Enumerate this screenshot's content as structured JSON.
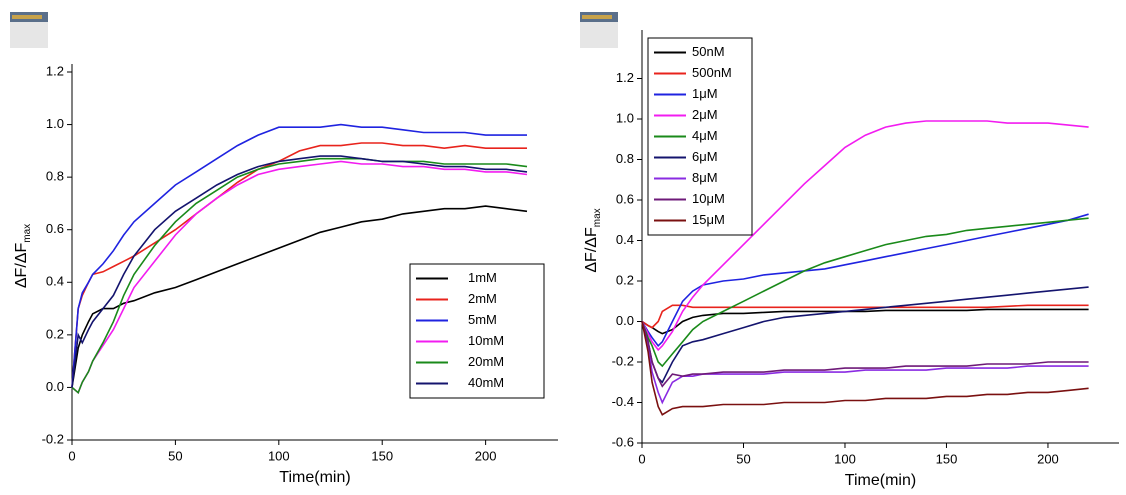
{
  "chart_data": [
    {
      "type": "line",
      "ylabel": "ΔF/ΔF",
      "ylabel_sub": "max",
      "xlabel": "Time(min)",
      "xlim": [
        0,
        235
      ],
      "ylim": [
        -0.2,
        1.2
      ],
      "xticks": [
        0,
        50,
        100,
        150,
        200
      ],
      "yticks": [
        -0.2,
        {
          "value": 0,
          "label": "0.0"
        },
        0.2,
        0.4,
        0.6,
        0.8,
        {
          "value": 1,
          "label": "1.0"
        },
        1.2
      ],
      "legend": "lower right",
      "x": [
        0,
        3,
        5,
        8,
        10,
        15,
        20,
        25,
        30,
        40,
        50,
        60,
        70,
        80,
        90,
        100,
        110,
        120,
        130,
        140,
        150,
        160,
        170,
        180,
        190,
        200,
        210,
        220
      ],
      "series": [
        {
          "name": "1mM",
          "color": "#000000",
          "values": [
            0,
            0.15,
            0.2,
            0.25,
            0.28,
            0.3,
            0.3,
            0.32,
            0.33,
            0.36,
            0.38,
            0.41,
            0.44,
            0.47,
            0.5,
            0.53,
            0.56,
            0.59,
            0.61,
            0.63,
            0.64,
            0.66,
            0.67,
            0.68,
            0.68,
            0.69,
            0.68,
            0.67
          ]
        },
        {
          "name": "2mM",
          "color": "#e8231c",
          "values": [
            0,
            0.3,
            0.35,
            0.4,
            0.43,
            0.44,
            0.46,
            0.48,
            0.5,
            0.55,
            0.6,
            0.66,
            0.72,
            0.78,
            0.83,
            0.86,
            0.9,
            0.92,
            0.92,
            0.93,
            0.93,
            0.92,
            0.92,
            0.91,
            0.92,
            0.91,
            0.91,
            0.91
          ]
        },
        {
          "name": "5mM",
          "color": "#1f23e0",
          "values": [
            0,
            0.3,
            0.36,
            0.4,
            0.43,
            0.47,
            0.52,
            0.58,
            0.63,
            0.7,
            0.77,
            0.82,
            0.87,
            0.92,
            0.96,
            0.99,
            0.99,
            0.99,
            1.0,
            0.99,
            0.99,
            0.98,
            0.97,
            0.97,
            0.97,
            0.96,
            0.96,
            0.96
          ]
        },
        {
          "name": "10mM",
          "color": "#f21cf0",
          "values": [
            0,
            -0.02,
            0.02,
            0.06,
            0.1,
            0.16,
            0.22,
            0.3,
            0.38,
            0.48,
            0.58,
            0.66,
            0.72,
            0.77,
            0.81,
            0.83,
            0.84,
            0.85,
            0.86,
            0.85,
            0.85,
            0.84,
            0.84,
            0.83,
            0.83,
            0.82,
            0.82,
            0.81
          ]
        },
        {
          "name": "20mM",
          "color": "#1a8a1a",
          "values": [
            0,
            -0.02,
            0.02,
            0.06,
            0.1,
            0.17,
            0.25,
            0.35,
            0.43,
            0.54,
            0.63,
            0.7,
            0.75,
            0.8,
            0.83,
            0.85,
            0.86,
            0.87,
            0.87,
            0.87,
            0.86,
            0.86,
            0.86,
            0.85,
            0.85,
            0.85,
            0.85,
            0.84
          ]
        },
        {
          "name": "40mM",
          "color": "#14146e",
          "values": [
            0,
            0.2,
            0.17,
            0.22,
            0.25,
            0.3,
            0.35,
            0.43,
            0.5,
            0.6,
            0.67,
            0.72,
            0.77,
            0.81,
            0.84,
            0.86,
            0.87,
            0.88,
            0.88,
            0.87,
            0.86,
            0.86,
            0.85,
            0.84,
            0.84,
            0.83,
            0.83,
            0.82
          ]
        }
      ]
    },
    {
      "type": "line",
      "ylabel": "ΔF/ΔF",
      "ylabel_sub": "max",
      "xlabel": "Time(min)",
      "xlim": [
        0,
        235
      ],
      "ylim": [
        -0.6,
        1.4
      ],
      "xticks": [
        0,
        50,
        100,
        150,
        200
      ],
      "yticks": [
        -0.6,
        -0.4,
        -0.2,
        {
          "value": 0,
          "label": "0.0"
        },
        0.2,
        0.4,
        0.6,
        0.8,
        {
          "value": 1,
          "label": "1.0"
        },
        1.2
      ],
      "legend": "upper left",
      "x": [
        0,
        3,
        5,
        8,
        10,
        15,
        20,
        25,
        30,
        40,
        50,
        60,
        70,
        80,
        90,
        100,
        110,
        120,
        130,
        140,
        150,
        160,
        170,
        180,
        190,
        200,
        210,
        220
      ],
      "series": [
        {
          "name": "50nM",
          "color": "#000000",
          "values": [
            0,
            -0.02,
            -0.03,
            -0.05,
            -0.06,
            -0.04,
            0,
            0.02,
            0.03,
            0.04,
            0.04,
            0.045,
            0.05,
            0.05,
            0.05,
            0.05,
            0.05,
            0.055,
            0.055,
            0.055,
            0.055,
            0.055,
            0.06,
            0.06,
            0.06,
            0.06,
            0.06,
            0.06
          ]
        },
        {
          "name": "500nM",
          "color": "#e8231c",
          "values": [
            0,
            -0.02,
            -0.03,
            0,
            0.05,
            0.08,
            0.08,
            0.07,
            0.07,
            0.07,
            0.07,
            0.07,
            0.07,
            0.07,
            0.07,
            0.07,
            0.07,
            0.07,
            0.07,
            0.07,
            0.07,
            0.07,
            0.07,
            0.075,
            0.08,
            0.08,
            0.08,
            0.08
          ]
        },
        {
          "name": "1μM",
          "color": "#1f23e0",
          "values": [
            0,
            -0.05,
            -0.08,
            -0.12,
            -0.1,
            0,
            0.1,
            0.15,
            0.18,
            0.2,
            0.21,
            0.23,
            0.24,
            0.25,
            0.26,
            0.28,
            0.3,
            0.32,
            0.34,
            0.36,
            0.38,
            0.4,
            0.42,
            0.44,
            0.46,
            0.48,
            0.5,
            0.53
          ]
        },
        {
          "name": "2μM",
          "color": "#f21cf0",
          "values": [
            0,
            -0.06,
            -0.1,
            -0.14,
            -0.12,
            -0.05,
            0.05,
            0.12,
            0.18,
            0.28,
            0.38,
            0.48,
            0.58,
            0.68,
            0.77,
            0.86,
            0.92,
            0.96,
            0.98,
            0.99,
            0.99,
            0.99,
            0.99,
            0.98,
            0.98,
            0.98,
            0.97,
            0.96
          ]
        },
        {
          "name": "4μM",
          "color": "#1a8a1a",
          "values": [
            0,
            -0.08,
            -0.12,
            -0.2,
            -0.22,
            -0.16,
            -0.1,
            -0.04,
            0,
            0.05,
            0.1,
            0.15,
            0.2,
            0.25,
            0.29,
            0.32,
            0.35,
            0.38,
            0.4,
            0.42,
            0.43,
            0.45,
            0.46,
            0.47,
            0.48,
            0.49,
            0.5,
            0.51
          ]
        },
        {
          "name": "6μM",
          "color": "#14146e",
          "values": [
            0,
            -0.1,
            -0.2,
            -0.28,
            -0.3,
            -0.2,
            -0.12,
            -0.1,
            -0.09,
            -0.06,
            -0.03,
            0,
            0.02,
            0.03,
            0.04,
            0.05,
            0.06,
            0.07,
            0.08,
            0.09,
            0.1,
            0.11,
            0.12,
            0.13,
            0.14,
            0.15,
            0.16,
            0.17
          ]
        },
        {
          "name": "8μM",
          "color": "#8a2be2",
          "values": [
            0,
            -0.12,
            -0.25,
            -0.35,
            -0.4,
            -0.3,
            -0.27,
            -0.27,
            -0.26,
            -0.26,
            -0.26,
            -0.26,
            -0.25,
            -0.25,
            -0.25,
            -0.25,
            -0.24,
            -0.24,
            -0.24,
            -0.24,
            -0.23,
            -0.23,
            -0.23,
            -0.23,
            -0.22,
            -0.22,
            -0.22,
            -0.22
          ]
        },
        {
          "name": "10μM",
          "color": "#6e1a78",
          "values": [
            0,
            -0.1,
            -0.2,
            -0.28,
            -0.32,
            -0.26,
            -0.27,
            -0.26,
            -0.26,
            -0.25,
            -0.25,
            -0.25,
            -0.24,
            -0.24,
            -0.24,
            -0.23,
            -0.23,
            -0.23,
            -0.22,
            -0.22,
            -0.22,
            -0.22,
            -0.21,
            -0.21,
            -0.21,
            -0.2,
            -0.2,
            -0.2
          ]
        },
        {
          "name": "15μM",
          "color": "#7a1010",
          "values": [
            0,
            -0.15,
            -0.3,
            -0.42,
            -0.46,
            -0.43,
            -0.42,
            -0.42,
            -0.42,
            -0.41,
            -0.41,
            -0.41,
            -0.4,
            -0.4,
            -0.4,
            -0.39,
            -0.39,
            -0.38,
            -0.38,
            -0.38,
            -0.37,
            -0.37,
            -0.36,
            -0.36,
            -0.35,
            -0.35,
            -0.34,
            -0.33
          ]
        }
      ]
    }
  ]
}
